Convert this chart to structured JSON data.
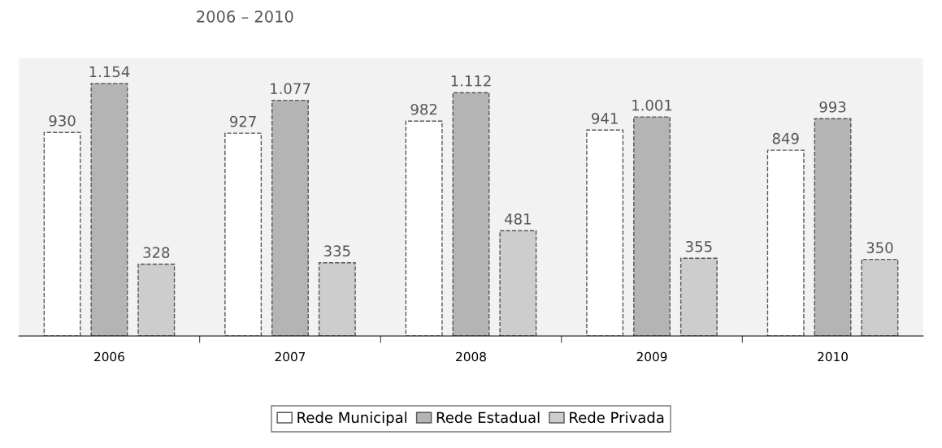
{
  "chart_data": {
    "type": "bar",
    "title": "2006 – 2010",
    "categories": [
      "2006",
      "2007",
      "2008",
      "2009",
      "2010"
    ],
    "series": [
      {
        "name": "Rede Municipal",
        "color": "#ffffff",
        "values": [
          930,
          927,
          982,
          941,
          849
        ],
        "value_labels": [
          "930",
          "927",
          "982",
          "941",
          "849"
        ]
      },
      {
        "name": "Rede Estadual",
        "color": "#b4b4b4",
        "values": [
          1154,
          1077,
          1112,
          1001,
          993
        ],
        "value_labels": [
          "1.154",
          "1.077",
          "1.112",
          "1.001",
          "993"
        ]
      },
      {
        "name": "Rede Privada",
        "color": "#cdcdcd",
        "values": [
          328,
          335,
          481,
          355,
          350
        ],
        "value_labels": [
          "328",
          "335",
          "481",
          "355",
          "350"
        ]
      }
    ],
    "tick_labels": "x",
    "grid": false,
    "legend": "bottom"
  }
}
